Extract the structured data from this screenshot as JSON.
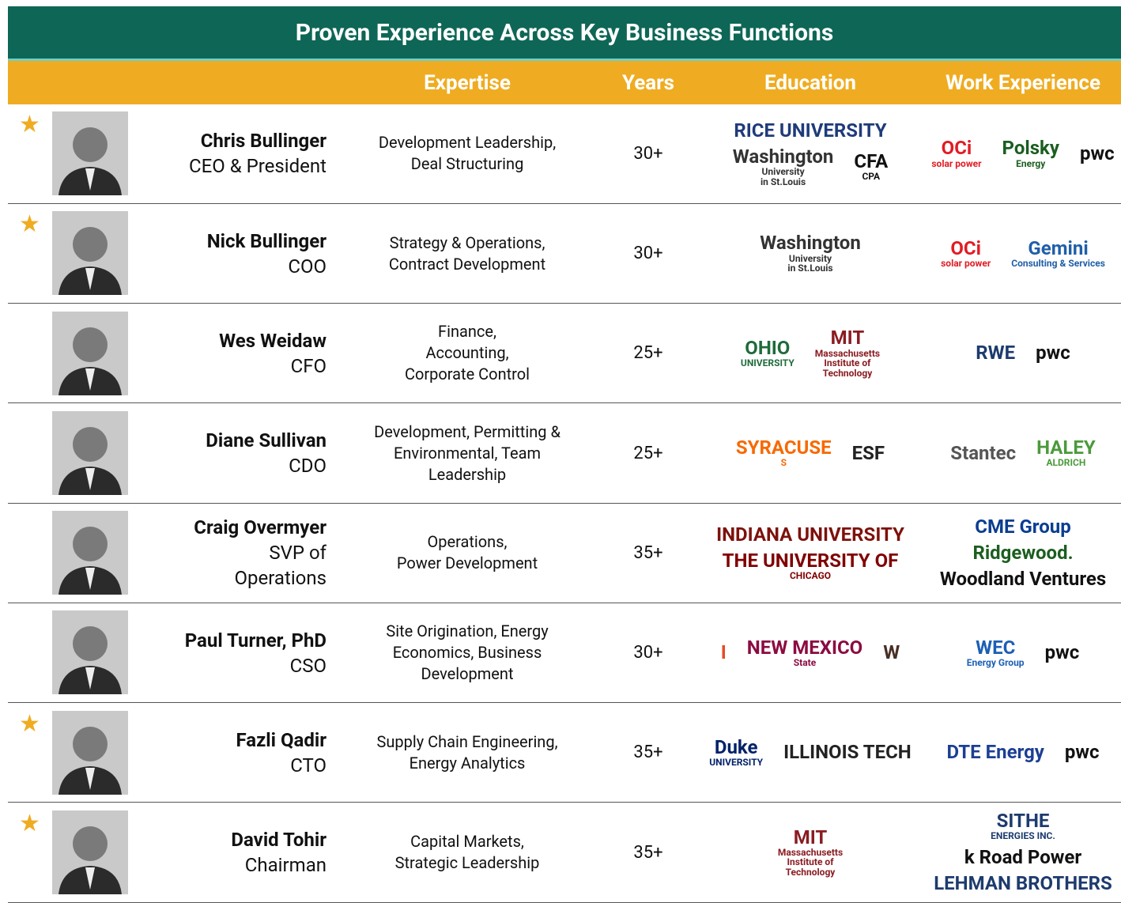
{
  "header": {
    "title": "Proven Experience Across Key Business Functions"
  },
  "table": {
    "columns": [
      "Expertise",
      "Years",
      "Education",
      "Work Experience"
    ],
    "rows": [
      {
        "starred": true,
        "name": "Chris Bullinger",
        "role": [
          "CEO & President"
        ],
        "expertise": [
          "Development Leadership,",
          "Deal Structuring"
        ],
        "years": "30+",
        "education": [
          {
            "text": [
              "RICE UNIVERSITY"
            ],
            "color": "#1f3b7a"
          },
          {
            "text": [
              "Washington",
              "University",
              "in St.Louis"
            ],
            "color": "#333333"
          },
          {
            "text": [
              "CFA",
              "CPA"
            ],
            "color": "#111111"
          }
        ],
        "work": [
          {
            "text": [
              "OCi",
              "solar power"
            ],
            "color": "#e21b23"
          },
          {
            "text": [
              "Polsky",
              "Energy"
            ],
            "color": "#1b5e20"
          },
          {
            "text": [
              "pwc"
            ],
            "color": "#111111"
          }
        ]
      },
      {
        "starred": true,
        "name": "Nick Bullinger",
        "role": [
          "COO"
        ],
        "expertise": [
          "Strategy & Operations,",
          "Contract Development"
        ],
        "years": "30+",
        "education": [
          {
            "text": [
              "Washington",
              "University",
              "in St.Louis"
            ],
            "color": "#333333"
          }
        ],
        "work": [
          {
            "text": [
              "OCi",
              "solar power"
            ],
            "color": "#e21b23"
          },
          {
            "text": [
              "Gemini",
              "Consulting & Services"
            ],
            "color": "#1f5fa8"
          }
        ]
      },
      {
        "starred": false,
        "name": "Wes Weidaw",
        "role": [
          "CFO"
        ],
        "expertise": [
          "Finance,",
          "Accounting,",
          "Corporate Control"
        ],
        "years": "25+",
        "education": [
          {
            "text": [
              "OHIO",
              "UNIVERSITY"
            ],
            "color": "#1f6b3a"
          },
          {
            "text": [
              "MIT",
              "Massachusetts",
              "Institute of",
              "Technology"
            ],
            "color": "#8a1c22"
          }
        ],
        "work": [
          {
            "text": [
              "RWE"
            ],
            "color": "#1d3b6e"
          },
          {
            "text": [
              "pwc"
            ],
            "color": "#111111"
          }
        ]
      },
      {
        "starred": false,
        "name": "Diane Sullivan",
        "role": [
          "CDO"
        ],
        "expertise": [
          "Development, Permitting &",
          "Environmental, Team",
          "Leadership"
        ],
        "years": "25+",
        "education": [
          {
            "text": [
              "SYRACUSE",
              "S"
            ],
            "color": "#f76900"
          },
          {
            "text": [
              "ESF"
            ],
            "color": "#222222"
          }
        ],
        "work": [
          {
            "text": [
              "Stantec"
            ],
            "color": "#555555"
          },
          {
            "text": [
              "HALEY",
              "ALDRICH"
            ],
            "color": "#4b9a3c"
          }
        ]
      },
      {
        "starred": false,
        "name": "Craig Overmyer",
        "role": [
          "SVP of",
          "Operations"
        ],
        "expertise": [
          "Operations,",
          "Power Development"
        ],
        "years": "35+",
        "education": [
          {
            "text": [
              "INDIANA UNIVERSITY"
            ],
            "color": "#7d110c"
          },
          {
            "text": [
              "THE UNIVERSITY OF",
              "CHICAGO"
            ],
            "color": "#800000"
          }
        ],
        "work": [
          {
            "text": [
              "CME Group"
            ],
            "color": "#0b3d91"
          },
          {
            "text": [
              "Ridgewood."
            ],
            "color": "#1b5e20"
          },
          {
            "text": [
              "Woodland Ventures"
            ],
            "color": "#111111"
          }
        ]
      },
      {
        "starred": false,
        "name": "Paul Turner, PhD",
        "role": [
          "CSO"
        ],
        "expertise": [
          "Site Origination, Energy",
          "Economics, Business",
          "Development"
        ],
        "years": "30+",
        "education": [
          {
            "text": [
              "I"
            ],
            "color": "#e84a27"
          },
          {
            "text": [
              "NEW MEXICO",
              "State"
            ],
            "color": "#8c0b42"
          },
          {
            "text": [
              "W"
            ],
            "color": "#492f24"
          }
        ],
        "work": [
          {
            "text": [
              "WEC",
              "Energy Group"
            ],
            "color": "#1c5fb5"
          },
          {
            "text": [
              "pwc"
            ],
            "color": "#111111"
          }
        ]
      },
      {
        "starred": true,
        "name": "Fazli Qadir",
        "role": [
          "CTO"
        ],
        "expertise": [
          "Supply Chain Engineering,",
          "Energy Analytics"
        ],
        "years": "35+",
        "education": [
          {
            "text": [
              "Duke",
              "UNIVERSITY"
            ],
            "color": "#012169"
          },
          {
            "text": [
              "ILLINOIS TECH"
            ],
            "color": "#222222"
          }
        ],
        "work": [
          {
            "text": [
              "DTE Energy"
            ],
            "color": "#1c3f94"
          },
          {
            "text": [
              "pwc"
            ],
            "color": "#111111"
          }
        ]
      },
      {
        "starred": true,
        "name": "David Tohir",
        "role": [
          "Chairman"
        ],
        "expertise": [
          "Capital Markets,",
          "Strategic Leadership"
        ],
        "years": "35+",
        "education": [
          {
            "text": [
              "MIT",
              "Massachusetts",
              "Institute of",
              "Technology"
            ],
            "color": "#8a1c22"
          }
        ],
        "work": [
          {
            "text": [
              "SITHE",
              "ENERGIES INC."
            ],
            "color": "#1d3b6e"
          },
          {
            "text": [
              "k Road Power"
            ],
            "color": "#111111"
          },
          {
            "text": [
              "LEHMAN BROTHERS"
            ],
            "color": "#1d3b6e"
          }
        ]
      }
    ]
  }
}
